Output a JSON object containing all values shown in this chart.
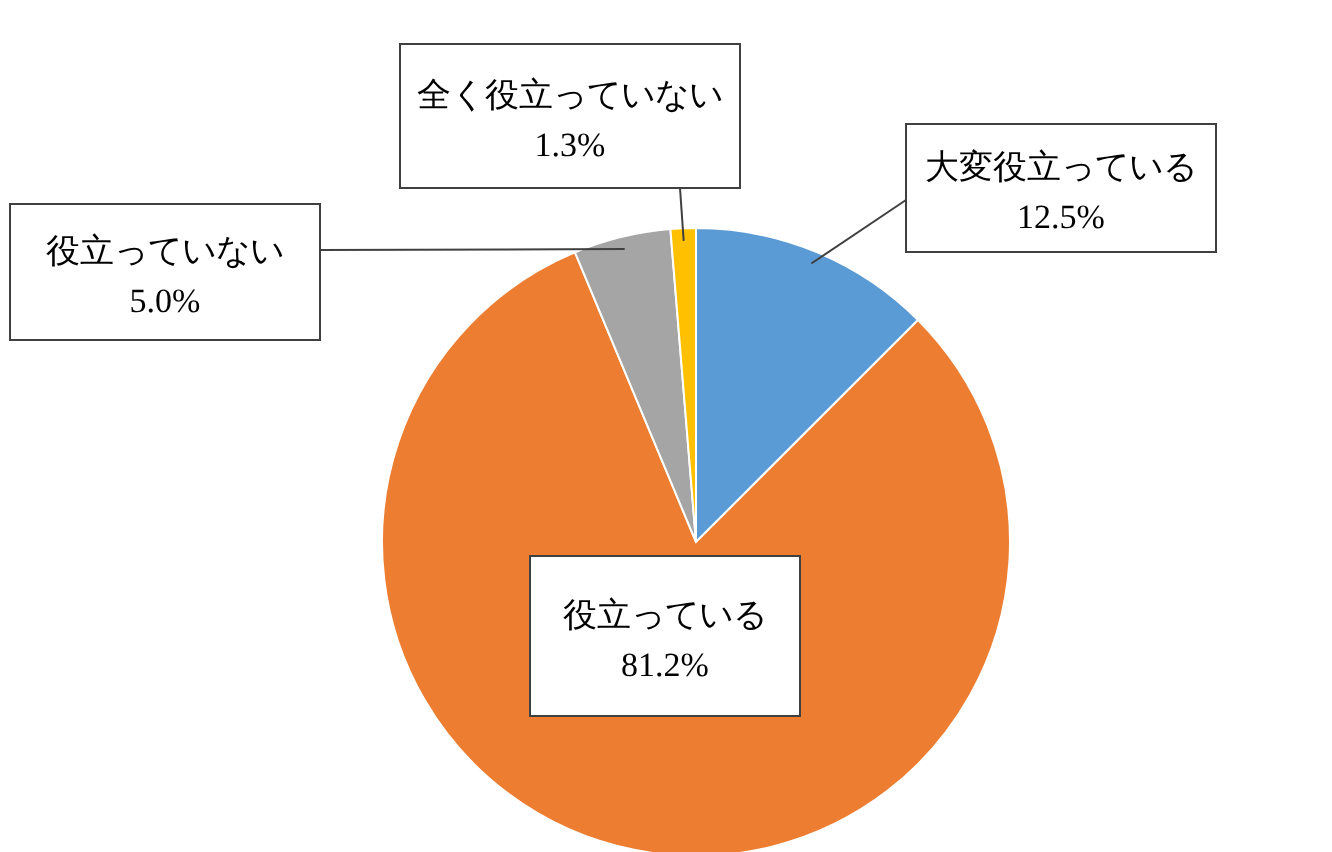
{
  "chart_data": {
    "type": "pie",
    "categories": [
      "大変役立っている",
      "役立っている",
      "役立っていない",
      "全く役立っていない"
    ],
    "values": [
      12.5,
      81.2,
      5.0,
      1.3
    ],
    "value_labels": [
      "12.5%",
      "81.2%",
      "5.0%",
      "1.3%"
    ],
    "colors": [
      "#5b9bd5",
      "#ed7d31",
      "#a5a5a5",
      "#ffc000"
    ],
    "legend": false
  }
}
